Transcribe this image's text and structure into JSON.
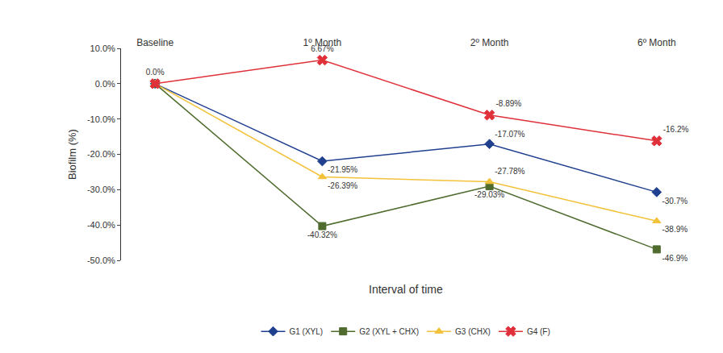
{
  "chart_data": {
    "type": "line",
    "x_label": "Interval of time",
    "y_label": "Biofilm (%)",
    "categories": [
      "Baseline",
      "1º Month",
      "2º Month",
      "6º Month"
    ],
    "ylim": [
      -50,
      10
    ],
    "yticks": [
      {
        "value": 10,
        "label": "10.0%"
      },
      {
        "value": 0,
        "label": "0.0%"
      },
      {
        "value": -10,
        "label": "-10.0%"
      },
      {
        "value": -20,
        "label": "-20.0%"
      },
      {
        "value": -30,
        "label": "-30.0%"
      },
      {
        "value": -40,
        "label": "-40.0%"
      },
      {
        "value": -50,
        "label": "-50.0%"
      }
    ],
    "grid": false,
    "legend": "bottom",
    "data_labels": true,
    "series": [
      {
        "name": "G1 (XYL)",
        "color": "#1f3f8f",
        "marker": "diamond",
        "line_style": "solid",
        "values": [
          0,
          -21.95,
          -17.07,
          -30.7
        ],
        "value_labels": [
          null,
          "-21.95%",
          "-17.07%",
          "-30.7%"
        ]
      },
      {
        "name": "G2 (XYL + CHX)",
        "color": "#4f6b2e",
        "marker": "square",
        "line_style": "solid",
        "values": [
          0,
          -40.32,
          -29.03,
          -46.9
        ],
        "value_labels": [
          null,
          "-40.32%",
          "-29.03%",
          "-46.9%"
        ]
      },
      {
        "name": "G3 (CHX)",
        "color": "#f2c23a",
        "marker": "triangle-up",
        "line_style": "solid",
        "values": [
          0,
          -26.39,
          -27.78,
          -38.9
        ],
        "value_labels": [
          null,
          "-26.39%",
          "-27.78%",
          "-38.9%"
        ]
      },
      {
        "name": "G4 (F)",
        "color": "#e0303a",
        "marker": "x",
        "line_style": "solid",
        "values": [
          0,
          6.67,
          -8.89,
          -16.2
        ],
        "value_labels": [
          "0.0%",
          "6.67%",
          "-8.89%",
          "-16.2%"
        ]
      }
    ]
  }
}
